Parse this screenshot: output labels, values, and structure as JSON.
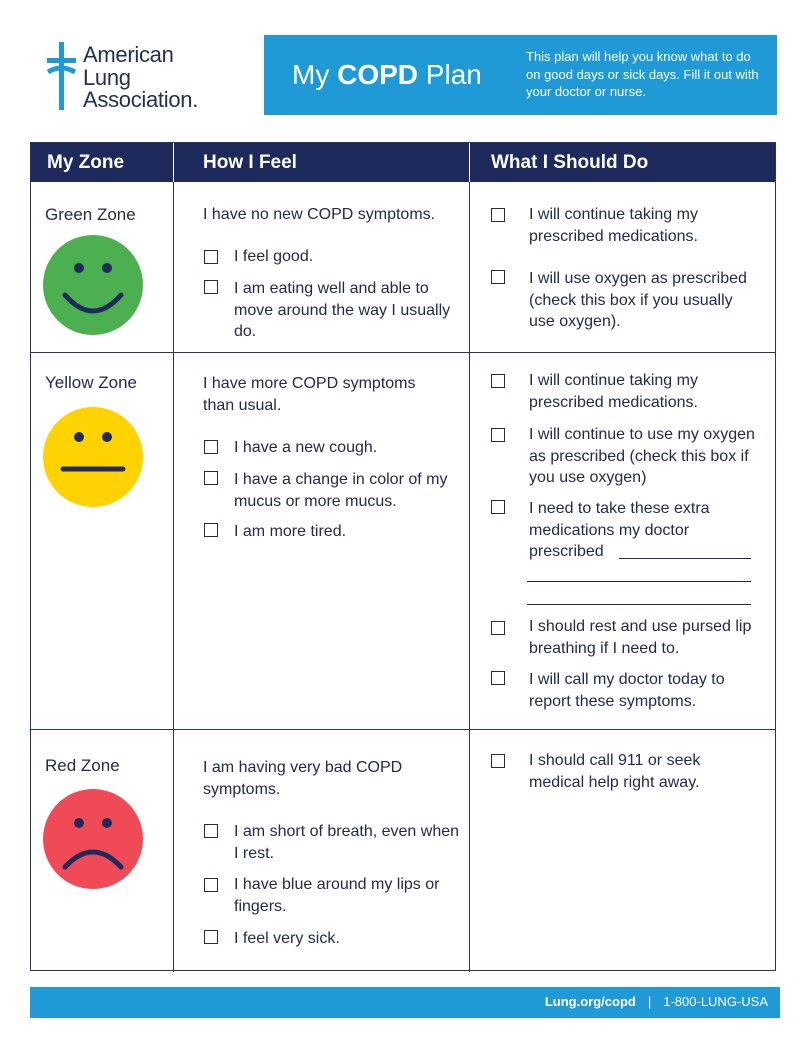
{
  "logo": {
    "line1": "American",
    "line2": "Lung",
    "line3": "Association."
  },
  "header": {
    "title_part1": "My ",
    "title_bold": "COPD",
    "title_part2": " Plan",
    "description": "This plan will help you know what to do on good days or sick days. Fill it out with your doctor or nurse."
  },
  "table": {
    "col_zone": "My Zone",
    "col_feel": "How I Feel",
    "col_do": "What I Should Do"
  },
  "green": {
    "zone": "Green Zone",
    "intro": "I have no new COPD symptoms.",
    "feel": [
      "I feel good.",
      "I am eating well and able to move around the way I usually do."
    ],
    "do": [
      "I will continue taking my prescribed medications.",
      "I will use oxygen as prescribed (check this box if you usually use oxygen)."
    ]
  },
  "yellow": {
    "zone": "Yellow Zone",
    "intro": "I have more COPD symptoms than usual.",
    "feel": [
      "I have a new cough.",
      "I have a change in color of my mucus or more mucus.",
      "I am more tired."
    ],
    "do": [
      "I will continue taking my prescribed medications.",
      "I will continue to use my oxygen as prescribed (check this box if you use oxygen)",
      "I need to take these extra medications my doctor prescribed",
      "I should rest and use pursed lip breathing if I need to.",
      "I will call my doctor today to report these symptoms."
    ]
  },
  "red": {
    "zone": "Red Zone",
    "intro": "I am having very bad COPD symptoms.",
    "feel": [
      "I am short of breath, even when I rest.",
      "I have blue around my lips or fingers.",
      "I feel very sick."
    ],
    "do": [
      "I should call 911 or seek medical help right away."
    ]
  },
  "footer": {
    "website": "Lung.org/copd",
    "separator": "|",
    "phone": "1-800-LUNG-USA"
  },
  "colors": {
    "brand_blue": "#1f9ad6",
    "navy": "#1f2a5c",
    "green_face": "#4caf50",
    "yellow_face": "#ffd200",
    "red_face": "#ef4a56"
  },
  "icons": [
    "lung-cross-icon",
    "happy-face-icon",
    "neutral-face-icon",
    "sad-face-icon",
    "checkbox-icon"
  ]
}
